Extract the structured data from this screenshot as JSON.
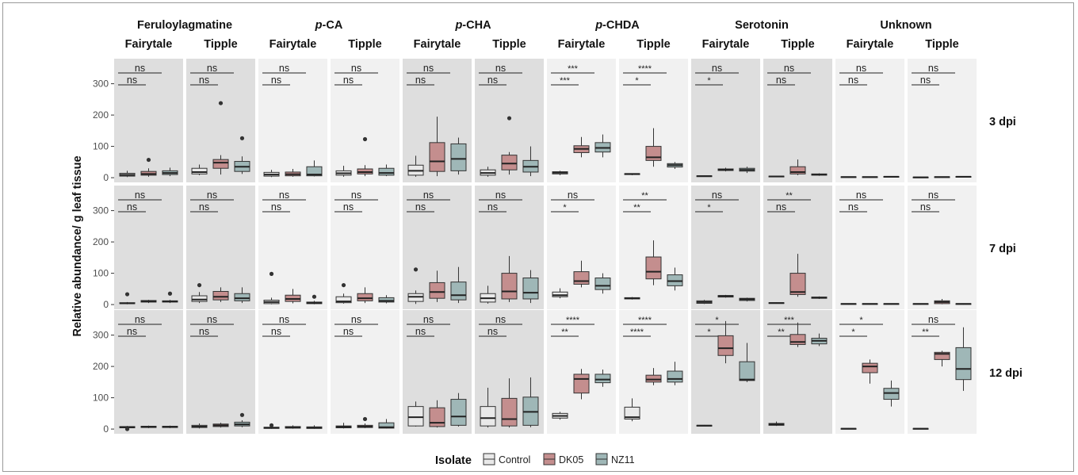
{
  "chart_data": {
    "type": "box",
    "compounds": [
      {
        "name": "Feruloylagmatine",
        "prefix": ""
      },
      {
        "name": "CA",
        "prefix": "p-"
      },
      {
        "name": "CHA",
        "prefix": "p-"
      },
      {
        "name": "CHDA",
        "prefix": "p-"
      },
      {
        "name": "Serotonin",
        "prefix": ""
      },
      {
        "name": "Unknown",
        "prefix": ""
      }
    ],
    "cultivars": [
      "Fairytale",
      "Tipple"
    ],
    "timepoints": [
      "3 dpi",
      "7 dpi",
      "12 dpi"
    ],
    "ylabel": "Relative abundance/ g leaf tissue",
    "ylim": [
      -15,
      380
    ],
    "yticks": [
      0,
      100,
      200,
      300
    ],
    "legend": {
      "title": "Isolate",
      "items": [
        {
          "label": "Control",
          "color": "#e9e9e9"
        },
        {
          "label": "DK05",
          "color": "#c48e8e"
        },
        {
          "label": "NZ11",
          "color": "#9fb7b7"
        }
      ]
    },
    "panels": [
      {
        "row": 0,
        "col": 0,
        "upper": "ns",
        "lower": "ns",
        "boxes": [
          [
            2,
            5,
            9,
            14,
            22,
            []
          ],
          [
            3,
            8,
            12,
            20,
            30,
            [
              57
            ]
          ],
          [
            5,
            10,
            15,
            22,
            32,
            []
          ]
        ]
      },
      {
        "row": 0,
        "col": 1,
        "upper": "ns",
        "lower": "ns",
        "boxes": [
          [
            8,
            12,
            18,
            30,
            42,
            []
          ],
          [
            10,
            30,
            48,
            58,
            72,
            [
              238
            ]
          ],
          [
            12,
            20,
            35,
            52,
            68,
            [
              126
            ]
          ]
        ]
      },
      {
        "row": 0,
        "col": 2,
        "upper": "ns",
        "lower": "ns",
        "boxes": [
          [
            2,
            5,
            10,
            17,
            25,
            []
          ],
          [
            3,
            6,
            11,
            18,
            28,
            []
          ],
          [
            4,
            6,
            10,
            35,
            55,
            []
          ]
        ]
      },
      {
        "row": 0,
        "col": 3,
        "upper": "ns",
        "lower": "ns",
        "boxes": [
          [
            3,
            8,
            14,
            22,
            38,
            []
          ],
          [
            5,
            12,
            18,
            28,
            40,
            [
              123
            ]
          ],
          [
            5,
            8,
            15,
            30,
            42,
            []
          ]
        ]
      },
      {
        "row": 0,
        "col": 4,
        "upper": "ns",
        "lower": "ns",
        "boxes": [
          [
            3,
            8,
            22,
            40,
            70,
            []
          ],
          [
            5,
            20,
            52,
            112,
            195,
            []
          ],
          [
            10,
            22,
            60,
            108,
            128,
            []
          ]
        ]
      },
      {
        "row": 0,
        "col": 5,
        "upper": "ns",
        "lower": "ns",
        "boxes": [
          [
            3,
            8,
            15,
            25,
            35,
            []
          ],
          [
            10,
            25,
            45,
            72,
            82,
            [
              190
            ]
          ],
          [
            5,
            18,
            35,
            55,
            100,
            []
          ]
        ]
      },
      {
        "row": 0,
        "col": 6,
        "upper": "***",
        "lower": "***",
        "boxes": [
          [
            8,
            12,
            16,
            19,
            22,
            []
          ],
          [
            65,
            80,
            92,
            102,
            130,
            []
          ],
          [
            65,
            82,
            95,
            112,
            138,
            []
          ]
        ]
      },
      {
        "row": 0,
        "col": 7,
        "upper": "****",
        "lower": "*",
        "boxes": [
          [
            8,
            10,
            12,
            13,
            14,
            []
          ],
          [
            35,
            55,
            65,
            100,
            158,
            []
          ],
          [
            28,
            34,
            40,
            45,
            50,
            []
          ]
        ]
      },
      {
        "row": 0,
        "col": 8,
        "upper": "ns",
        "lower": "*",
        "boxes": [
          [
            3,
            4,
            5,
            6,
            7,
            []
          ],
          [
            20,
            23,
            25,
            28,
            32,
            []
          ],
          [
            15,
            21,
            25,
            30,
            35,
            []
          ]
        ]
      },
      {
        "row": 0,
        "col": 9,
        "upper": "ns",
        "lower": "ns",
        "boxes": [
          [
            2,
            3,
            4,
            5,
            6,
            []
          ],
          [
            8,
            12,
            18,
            35,
            58,
            []
          ],
          [
            6,
            8,
            10,
            12,
            14,
            []
          ]
        ]
      },
      {
        "row": 0,
        "col": 10,
        "upper": "ns",
        "lower": "ns",
        "boxes": [
          [
            0,
            1,
            2,
            3,
            4,
            []
          ],
          [
            0,
            1,
            2,
            3,
            4,
            []
          ],
          [
            1,
            2,
            3,
            4,
            5,
            []
          ]
        ]
      },
      {
        "row": 0,
        "col": 11,
        "upper": "ns",
        "lower": "ns",
        "boxes": [
          [
            0,
            1,
            1,
            2,
            3,
            []
          ],
          [
            0,
            1,
            2,
            3,
            4,
            []
          ],
          [
            1,
            2,
            3,
            4,
            5,
            []
          ]
        ]
      },
      {
        "row": 1,
        "col": 0,
        "upper": "ns",
        "lower": "ns",
        "boxes": [
          [
            1,
            3,
            4,
            6,
            8,
            [
              33
            ]
          ],
          [
            5,
            8,
            10,
            13,
            15,
            []
          ],
          [
            5,
            8,
            10,
            12,
            15,
            [
              35
            ]
          ]
        ]
      },
      {
        "row": 1,
        "col": 1,
        "upper": "ns",
        "lower": "ns",
        "boxes": [
          [
            5,
            10,
            16,
            28,
            40,
            [
              62
            ]
          ],
          [
            8,
            15,
            25,
            42,
            55,
            []
          ],
          [
            5,
            12,
            20,
            35,
            55,
            []
          ]
        ]
      },
      {
        "row": 1,
        "col": 2,
        "upper": "ns",
        "lower": "ns",
        "boxes": [
          [
            1,
            3,
            8,
            14,
            22,
            [
              98
            ]
          ],
          [
            4,
            10,
            18,
            30,
            50,
            []
          ],
          [
            1,
            3,
            5,
            8,
            12,
            [
              25
            ]
          ]
        ]
      },
      {
        "row": 1,
        "col": 3,
        "upper": "ns",
        "lower": "ns",
        "boxes": [
          [
            3,
            6,
            10,
            25,
            35,
            [
              62
            ]
          ],
          [
            5,
            12,
            20,
            35,
            55,
            []
          ],
          [
            4,
            8,
            12,
            22,
            30,
            []
          ]
        ]
      },
      {
        "row": 1,
        "col": 4,
        "upper": "ns",
        "lower": "ns",
        "boxes": [
          [
            2,
            10,
            25,
            35,
            45,
            [
              112
            ]
          ],
          [
            8,
            20,
            40,
            70,
            108,
            []
          ],
          [
            5,
            15,
            30,
            72,
            120,
            []
          ]
        ]
      },
      {
        "row": 1,
        "col": 5,
        "upper": "ns",
        "lower": "ns",
        "boxes": [
          [
            3,
            8,
            20,
            35,
            60,
            []
          ],
          [
            8,
            18,
            42,
            100,
            155,
            []
          ],
          [
            5,
            18,
            38,
            85,
            110,
            []
          ]
        ]
      },
      {
        "row": 1,
        "col": 6,
        "upper": "ns",
        "lower": "*",
        "boxes": [
          [
            20,
            25,
            30,
            40,
            52,
            []
          ],
          [
            55,
            65,
            75,
            105,
            140,
            []
          ],
          [
            35,
            48,
            60,
            85,
            100,
            []
          ]
        ]
      },
      {
        "row": 1,
        "col": 7,
        "upper": "**",
        "lower": "**",
        "boxes": [
          [
            16,
            18,
            20,
            22,
            24,
            []
          ],
          [
            62,
            82,
            105,
            152,
            205,
            []
          ],
          [
            45,
            60,
            75,
            95,
            118,
            []
          ]
        ]
      },
      {
        "row": 1,
        "col": 8,
        "upper": "ns",
        "lower": "*",
        "boxes": [
          [
            2,
            4,
            8,
            12,
            15,
            []
          ],
          [
            22,
            24,
            27,
            29,
            31,
            []
          ],
          [
            10,
            13,
            17,
            20,
            22,
            []
          ]
        ]
      },
      {
        "row": 1,
        "col": 9,
        "upper": "**",
        "lower": "ns",
        "boxes": [
          [
            3,
            4,
            5,
            6,
            7,
            []
          ],
          [
            25,
            32,
            40,
            100,
            162,
            []
          ],
          [
            18,
            20,
            22,
            24,
            26,
            []
          ]
        ]
      },
      {
        "row": 1,
        "col": 10,
        "upper": "ns",
        "lower": "ns",
        "boxes": [
          [
            0,
            1,
            2,
            3,
            4,
            []
          ],
          [
            0,
            1,
            2,
            3,
            4,
            []
          ],
          [
            0,
            1,
            2,
            3,
            4,
            []
          ]
        ]
      },
      {
        "row": 1,
        "col": 11,
        "upper": "ns",
        "lower": "ns",
        "boxes": [
          [
            0,
            1,
            2,
            3,
            4,
            []
          ],
          [
            1,
            3,
            8,
            12,
            18,
            []
          ],
          [
            0,
            1,
            2,
            3,
            4,
            []
          ]
        ]
      },
      {
        "row": 2,
        "col": 0,
        "upper": "ns",
        "lower": "ns",
        "boxes": [
          [
            2,
            4,
            6,
            8,
            10,
            [
              0
            ]
          ],
          [
            3,
            5,
            7,
            9,
            11,
            []
          ],
          [
            3,
            5,
            7,
            9,
            11,
            []
          ]
        ]
      },
      {
        "row": 2,
        "col": 1,
        "upper": "ns",
        "lower": "ns",
        "boxes": [
          [
            2,
            5,
            8,
            12,
            18,
            []
          ],
          [
            5,
            8,
            12,
            16,
            20,
            []
          ],
          [
            6,
            10,
            15,
            22,
            28,
            [
              45
            ]
          ]
        ]
      },
      {
        "row": 2,
        "col": 2,
        "upper": "ns",
        "lower": "ns",
        "boxes": [
          [
            1,
            2,
            4,
            6,
            8,
            [
              12
            ]
          ],
          [
            1,
            3,
            5,
            8,
            12,
            []
          ],
          [
            1,
            2,
            4,
            7,
            12,
            []
          ]
        ]
      },
      {
        "row": 2,
        "col": 3,
        "upper": "ns",
        "lower": "ns",
        "boxes": [
          [
            2,
            4,
            7,
            10,
            20,
            []
          ],
          [
            3,
            5,
            8,
            12,
            18,
            [
              32
            ]
          ],
          [
            2,
            3,
            6,
            20,
            32,
            []
          ]
        ]
      },
      {
        "row": 2,
        "col": 4,
        "upper": "ns",
        "lower": "ns",
        "boxes": [
          [
            8,
            10,
            38,
            72,
            88,
            []
          ],
          [
            5,
            8,
            20,
            68,
            92,
            []
          ],
          [
            8,
            12,
            40,
            95,
            115,
            []
          ]
        ]
      },
      {
        "row": 2,
        "col": 5,
        "upper": "ns",
        "lower": "ns",
        "boxes": [
          [
            5,
            10,
            35,
            72,
            132,
            []
          ],
          [
            5,
            10,
            32,
            98,
            162,
            []
          ],
          [
            6,
            12,
            55,
            102,
            165,
            []
          ]
        ]
      },
      {
        "row": 2,
        "col": 6,
        "upper": "****",
        "lower": "**",
        "boxes": [
          [
            30,
            35,
            42,
            50,
            55,
            []
          ],
          [
            95,
            115,
            160,
            175,
            192,
            []
          ],
          [
            135,
            148,
            158,
            175,
            190,
            []
          ]
        ]
      },
      {
        "row": 2,
        "col": 7,
        "upper": "****",
        "lower": "****",
        "boxes": [
          [
            25,
            32,
            38,
            70,
            98,
            []
          ],
          [
            140,
            150,
            158,
            172,
            195,
            []
          ],
          [
            140,
            150,
            160,
            185,
            215,
            []
          ]
        ]
      },
      {
        "row": 2,
        "col": 8,
        "upper": "*",
        "lower": "*",
        "boxes": [
          [
            9,
            10,
            11,
            12,
            13,
            []
          ],
          [
            210,
            235,
            258,
            298,
            345,
            []
          ],
          [
            150,
            155,
            158,
            215,
            275,
            []
          ]
        ]
      },
      {
        "row": 2,
        "col": 9,
        "upper": "***",
        "lower": "**",
        "boxes": [
          [
            10,
            12,
            15,
            18,
            24,
            []
          ],
          [
            262,
            270,
            278,
            302,
            340,
            []
          ],
          [
            265,
            272,
            282,
            290,
            305,
            []
          ]
        ]
      },
      {
        "row": 2,
        "col": 10,
        "upper": "*",
        "lower": "*",
        "boxes": [
          [
            0,
            1,
            1,
            2,
            3,
            []
          ],
          [
            145,
            180,
            200,
            210,
            222,
            []
          ],
          [
            72,
            95,
            115,
            130,
            155,
            []
          ]
        ]
      },
      {
        "row": 2,
        "col": 11,
        "upper": "ns",
        "lower": "**",
        "boxes": [
          [
            0,
            1,
            1,
            2,
            3,
            []
          ],
          [
            200,
            222,
            240,
            245,
            250,
            []
          ],
          [
            122,
            158,
            192,
            260,
            325,
            []
          ]
        ]
      }
    ]
  }
}
